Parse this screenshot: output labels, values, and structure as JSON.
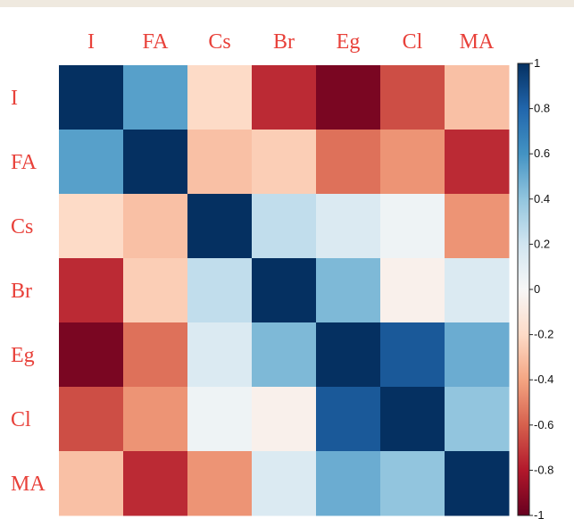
{
  "chart_data": {
    "type": "heatmap",
    "title": "",
    "variables": [
      "I",
      "FA",
      "Cs",
      "Br",
      "Eg",
      "Cl",
      "MA"
    ],
    "row_labels": [
      "I",
      "FA",
      "Cs",
      "Br",
      "Eg",
      "Cl",
      "MA"
    ],
    "column_labels": [
      "I",
      "FA",
      "Cs",
      "Br",
      "Eg",
      "Cl",
      "MA"
    ],
    "matrix": [
      [
        1.0,
        0.55,
        -0.2,
        -0.75,
        -0.95,
        -0.65,
        -0.3
      ],
      [
        0.55,
        1.0,
        -0.3,
        -0.25,
        -0.55,
        -0.45,
        -0.75
      ],
      [
        -0.2,
        -0.3,
        1.0,
        0.25,
        0.15,
        0.05,
        -0.45
      ],
      [
        -0.75,
        -0.25,
        0.25,
        1.0,
        0.45,
        -0.05,
        0.15
      ],
      [
        -0.95,
        -0.55,
        0.15,
        0.45,
        1.0,
        0.85,
        0.5
      ],
      [
        -0.65,
        -0.45,
        0.05,
        -0.05,
        0.85,
        1.0,
        0.4
      ],
      [
        -0.3,
        -0.75,
        -0.45,
        0.15,
        0.5,
        0.4,
        1.0
      ]
    ],
    "color_scale": {
      "range": [
        -1,
        1
      ],
      "ticks": [
        "1",
        "0.8",
        "0.6",
        "0.4",
        "0.2",
        "0",
        "-0.2",
        "-0.4",
        "-0.6",
        "-0.8",
        "-1"
      ],
      "tick_values": [
        1,
        0.8,
        0.6,
        0.4,
        0.2,
        0,
        -0.2,
        -0.4,
        -0.6,
        -0.8,
        -1
      ],
      "colors": [
        "#67001f",
        "#b2182b",
        "#d6604d",
        "#f4a582",
        "#fddbc7",
        "#f7f7f7",
        "#d1e5f0",
        "#92c5de",
        "#4393c3",
        "#2166ac",
        "#053061"
      ]
    },
    "label_color": "#e8413a",
    "grid": false,
    "legend_placement": "right"
  }
}
